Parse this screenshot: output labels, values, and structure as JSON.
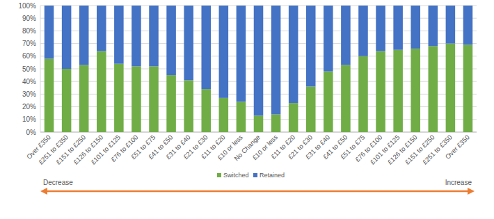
{
  "chart_data": {
    "type": "bar",
    "stacked": true,
    "grid": true,
    "legend": "bottom",
    "categories": [
      "Over £350",
      "£251 to £350",
      "£151 to £250",
      "£126 to £150",
      "£101 to £125",
      "£76 to £100",
      "£51 to £75",
      "£41 to £50",
      "£31 to £40",
      "£21 to £30",
      "£11 to £20",
      "£10 or less",
      "No Change",
      "£10 or less",
      "£11 to £20",
      "£21 to £30",
      "£31 to £40",
      "£41 to £50",
      "£51 to £75",
      "£76 to £100",
      "£101 to £125",
      "£126 to £150",
      "£151 to £250",
      "£251 to £350",
      "Over £350"
    ],
    "series": [
      {
        "name": "Switched",
        "color": "#70ad47",
        "values": [
          58,
          50,
          53,
          64,
          54,
          52,
          52,
          45,
          41,
          34,
          27,
          24,
          13,
          14,
          23,
          36,
          48,
          53,
          60,
          64,
          65,
          66,
          68,
          70,
          69
        ]
      },
      {
        "name": "Retained",
        "color": "#4472c4",
        "values": [
          42,
          50,
          47,
          36,
          46,
          48,
          48,
          55,
          59,
          66,
          73,
          76,
          87,
          86,
          77,
          64,
          52,
          47,
          40,
          36,
          35,
          34,
          32,
          30,
          31
        ]
      }
    ],
    "ylim": [
      0,
      100
    ],
    "yticks": [
      {
        "value": 0,
        "label": "0%"
      },
      {
        "value": 10,
        "label": "10%"
      },
      {
        "value": 20,
        "label": "20%"
      },
      {
        "value": 30,
        "label": "30%"
      },
      {
        "value": 40,
        "label": "40%"
      },
      {
        "value": 50,
        "label": "50%"
      },
      {
        "value": 60,
        "label": "60%"
      },
      {
        "value": 70,
        "label": "70%"
      },
      {
        "value": 80,
        "label": "80%"
      },
      {
        "value": 90,
        "label": "90%"
      },
      {
        "value": 100,
        "label": "100%"
      }
    ],
    "annotations": [
      "Decrease",
      "Increase"
    ]
  }
}
